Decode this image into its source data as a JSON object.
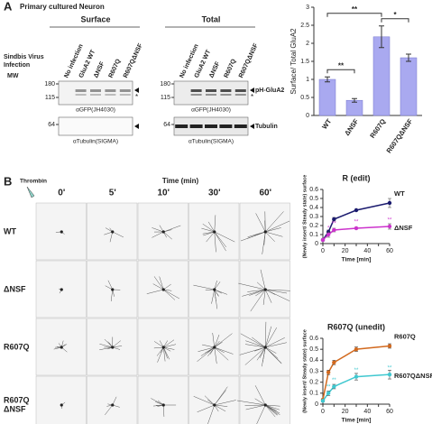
{
  "panel_a": {
    "label": "A",
    "title": "Primary cultured Neuron",
    "infection_label": [
      "Sindbis Virus",
      "Infection"
    ],
    "mw_label": "MW",
    "lanes": [
      "No infection",
      "GluA2 WT",
      "ΔNSF",
      "R607Q",
      "R607QΔNSF"
    ],
    "blots": [
      {
        "heading": "Surface",
        "mw": [
          "180",
          "115",
          "64"
        ],
        "antibody_top": "αGFP(JH4030)",
        "antibody_bottom": "αTubulin(SIGMA)"
      },
      {
        "heading": "Total",
        "mw": [
          "180",
          "115",
          "64"
        ],
        "antibody_top": "αGFP(JH4030)",
        "antibody_bottom": "αTubulin(SIGMA)"
      }
    ],
    "band_labels": {
      "top": "pH-GluA2",
      "bottom": "Tubulin",
      "star": "*"
    },
    "chart": {
      "type": "bar",
      "ylabel": "Surface/ Total GluA2",
      "categories": [
        "WT",
        "ΔNSF",
        "R607Q",
        "R607QΔNSF"
      ],
      "values": [
        1.0,
        0.42,
        2.18,
        1.6
      ],
      "errors": [
        0.07,
        0.05,
        0.3,
        0.1
      ],
      "color": "#a9a9f0",
      "ylim": [
        0,
        3
      ],
      "yticks": [
        0,
        0.5,
        1,
        1.5,
        2,
        2.5,
        3
      ],
      "significance": [
        {
          "text": "**",
          "from": 0,
          "to": 1
        },
        {
          "text": "**",
          "from": 0,
          "to": 2
        },
        {
          "text": "*",
          "from": 2,
          "to": 3
        }
      ]
    }
  },
  "panel_b": {
    "label": "B",
    "stimulus": "Thrombin",
    "time_label": "Time (min)",
    "times": [
      "0'",
      "5'",
      "10'",
      "30'",
      "60'"
    ],
    "rows": [
      [
        "WT"
      ],
      [
        "ΔNSF"
      ],
      [
        "R607Q"
      ],
      [
        "R607Q",
        "ΔNSF"
      ]
    ],
    "charts": [
      {
        "type": "line",
        "title": "R (edit)",
        "x": [
          0,
          5,
          10,
          30,
          60
        ],
        "xlim": [
          0,
          60
        ],
        "xticks": [
          0,
          10,
          20,
          30,
          40,
          50,
          60
        ],
        "ylim": [
          0,
          0.6
        ],
        "yticks": [
          0,
          0.1,
          0.2,
          0.3,
          0.4,
          0.5,
          0.6
        ],
        "xlabel": "Time [min]",
        "ylabel": "(Newly insert/ Steady state) surface",
        "series": [
          {
            "name": "WT",
            "color": "#1a1a6e",
            "values": [
              0.04,
              0.13,
              0.27,
              0.37,
              0.45
            ],
            "errors": [
              0.01,
              0.02,
              0.02,
              0.01,
              0.05
            ]
          },
          {
            "name": "ΔNSF",
            "color": "#cc33cc",
            "values": [
              0.04,
              0.1,
              0.15,
              0.17,
              0.19
            ],
            "errors": [
              0.01,
              0.03,
              0.02,
              0.01,
              0.03
            ],
            "marks": [
              null,
              "*",
              "**",
              "**",
              "**"
            ]
          }
        ]
      },
      {
        "type": "line",
        "title": "R607Q (unedit)",
        "x": [
          0,
          5,
          10,
          30,
          60
        ],
        "xlim": [
          0,
          60
        ],
        "xticks": [
          0,
          10,
          20,
          30,
          40,
          50,
          60
        ],
        "ylim": [
          0,
          0.6
        ],
        "yticks": [
          0,
          0.1,
          0.2,
          0.3,
          0.4,
          0.5,
          0.6
        ],
        "xlabel": "Time [min]",
        "ylabel": "(Newly insert/ Steady state) surface",
        "series": [
          {
            "name": "R607Q",
            "color": "#d2691e",
            "values": [
              0.04,
              0.29,
              0.38,
              0.5,
              0.53
            ],
            "errors": [
              0.01,
              0.02,
              0.02,
              0.02,
              0.02
            ]
          },
          {
            "name": "R607QΔNSF",
            "color": "#40c8d0",
            "values": [
              0.03,
              0.1,
              0.16,
              0.25,
              0.27
            ],
            "errors": [
              0.01,
              0.02,
              0.02,
              0.03,
              0.04
            ],
            "marks": [
              null,
              "**",
              "**",
              "**",
              "**"
            ]
          }
        ]
      }
    ]
  }
}
